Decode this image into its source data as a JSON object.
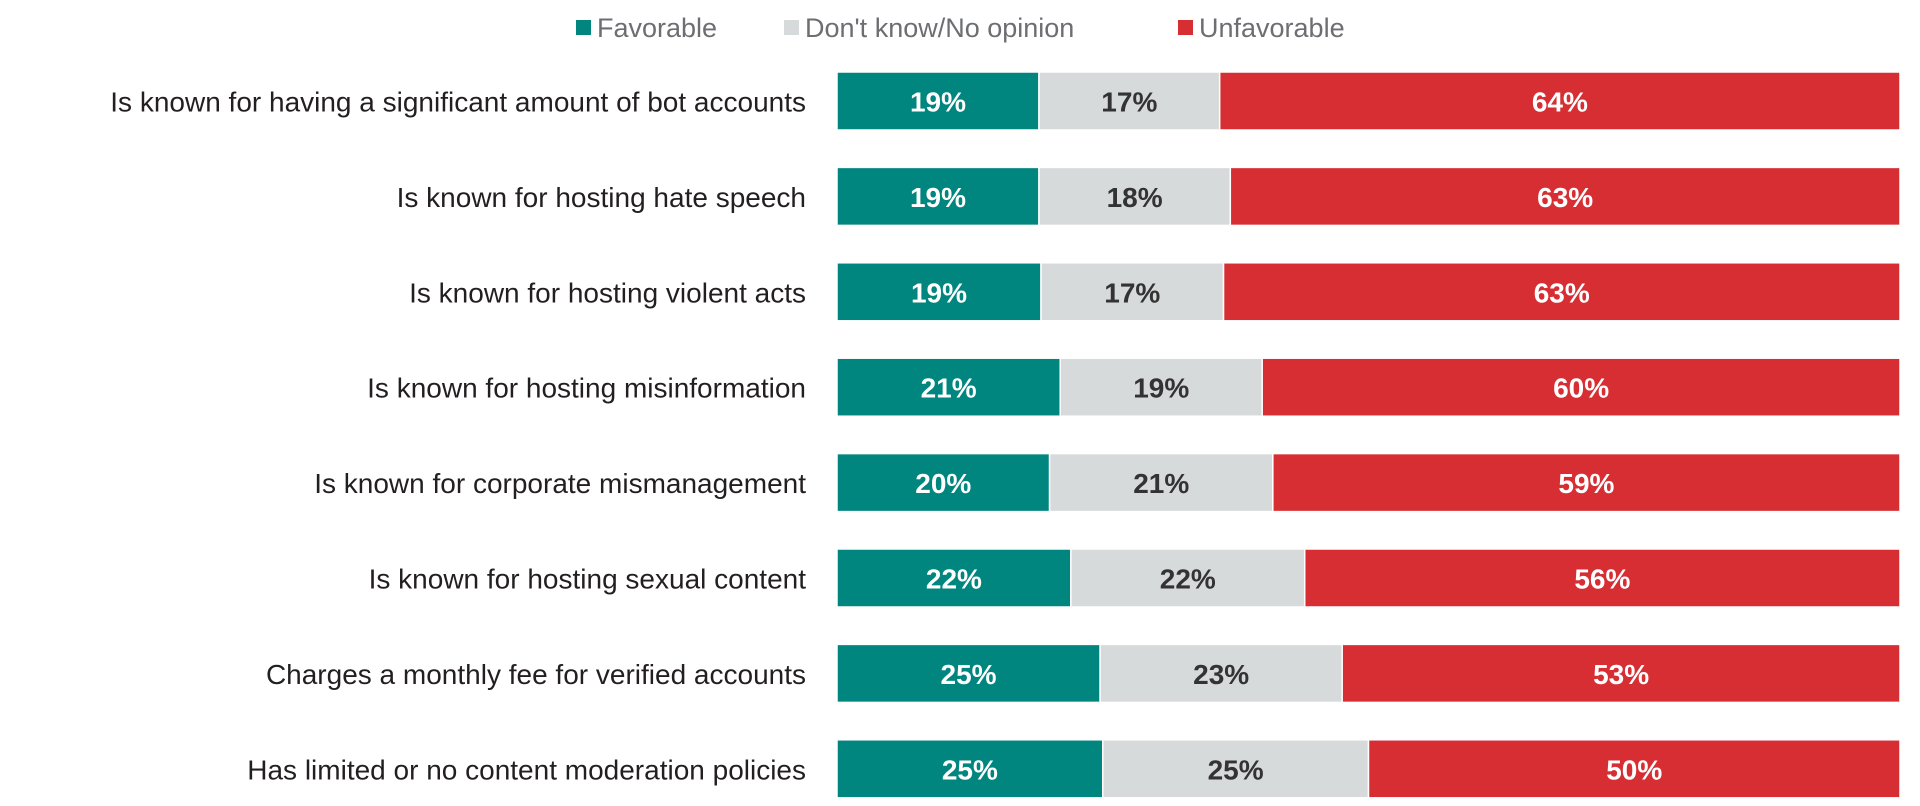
{
  "chart_data": {
    "type": "bar",
    "orientation": "horizontal",
    "stacked": true,
    "normalized": true,
    "legend_position": "top",
    "grid": false,
    "categories": [
      "Is known for having a significant amount of bot accounts",
      "Is known for hosting hate speech",
      "Is known for hosting violent acts",
      "Is known for hosting misinformation",
      "Is known for corporate mismanagement",
      "Is known for hosting sexual content",
      "Charges a monthly fee for verified accounts",
      "Has limited or no content moderation policies"
    ],
    "series": [
      {
        "name": "Favorable",
        "color": "#00857f",
        "label_color": "#ffffff",
        "values": [
          19,
          19,
          19,
          21,
          20,
          22,
          25,
          25
        ],
        "labels": [
          "19%",
          "19%",
          "19%",
          "21%",
          "20%",
          "22%",
          "25%",
          "25%"
        ]
      },
      {
        "name": "Don't know/No opinion",
        "color": "#d7dada",
        "label_color": "#333333",
        "values": [
          17,
          18,
          17,
          19,
          21,
          22,
          23,
          25
        ],
        "labels": [
          "17%",
          "18%",
          "17%",
          "19%",
          "21%",
          "22%",
          "23%",
          "25%"
        ]
      },
      {
        "name": "Unfavorable",
        "color": "#d62e33",
        "label_color": "#ffffff",
        "values": [
          64,
          63,
          63,
          60,
          59,
          56,
          53,
          50
        ],
        "labels": [
          "64%",
          "63%",
          "63%",
          "60%",
          "59%",
          "56%",
          "53%",
          "50%"
        ]
      }
    ]
  }
}
